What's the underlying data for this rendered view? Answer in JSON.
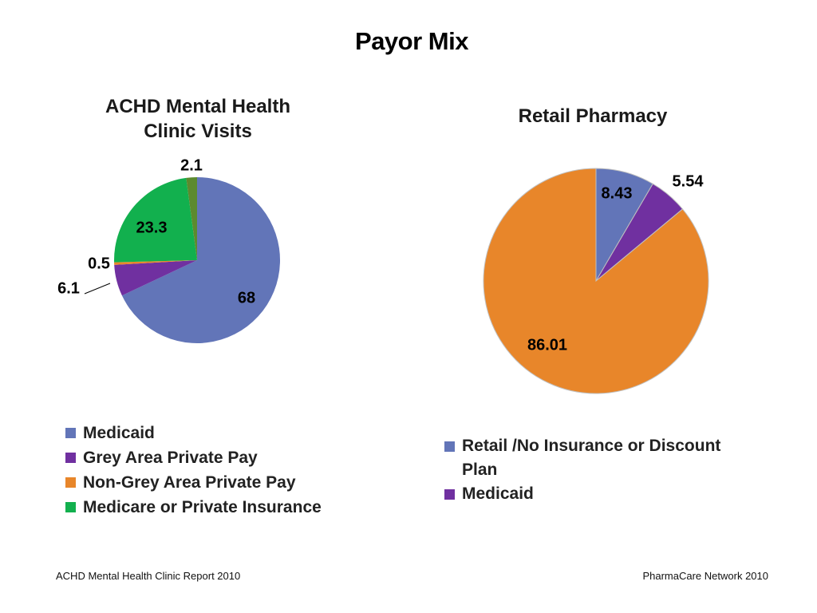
{
  "page": {
    "title": "Payor Mix",
    "footer_left": "ACHD Mental Health Clinic Report 2010",
    "footer_right": "PharmaCare Network 2010"
  },
  "chart_data": [
    {
      "type": "pie",
      "title": "ACHD Mental Health Clinic Visits",
      "title_lines": [
        "ACHD Mental Health",
        "Clinic Visits"
      ],
      "legend_placement": "bottom",
      "slices": [
        {
          "name": "Medicaid",
          "value": 68,
          "label": "68",
          "color": "#6275B8"
        },
        {
          "name": "Grey Area Private Pay",
          "value": 6.1,
          "label": "6.1",
          "color": "#7030A0"
        },
        {
          "name": "Non-Grey Area Private Pay",
          "value": 0.5,
          "label": "0.5",
          "color": "#E8862A"
        },
        {
          "name": "Medicare or Private Insurance",
          "value": 23.3,
          "label": "23.3",
          "color": "#12B04E"
        },
        {
          "name": "",
          "value": 2.1,
          "label": "2.1",
          "color": "#5C8A2E"
        }
      ],
      "legend": [
        {
          "label": "Medicaid",
          "color": "#6275B8"
        },
        {
          "label": "Grey Area Private Pay",
          "color": "#7030A0"
        },
        {
          "label": "Non-Grey Area Private Pay",
          "color": "#E8862A"
        },
        {
          "label": "Medicare or Private Insurance",
          "color": "#12B04E"
        }
      ]
    },
    {
      "type": "pie",
      "title": "Retail Pharmacy",
      "legend_placement": "bottom",
      "slices": [
        {
          "name": "Retail /No Insurance or Discount Plan",
          "value": 8.43,
          "label": "8.43",
          "color": "#6275B8"
        },
        {
          "name": "Medicaid",
          "value": 5.54,
          "label": "5.54",
          "color": "#7030A0"
        },
        {
          "name": "",
          "value": 86.01,
          "label": "86.01",
          "color": "#E8862A"
        }
      ],
      "legend": [
        {
          "label": "Retail /No Insurance or Discount Plan",
          "label_lines": [
            "Retail /No Insurance or Discount",
            "Plan"
          ],
          "color": "#6275B8"
        },
        {
          "label": "Medicaid",
          "color": "#7030A0"
        }
      ]
    }
  ]
}
